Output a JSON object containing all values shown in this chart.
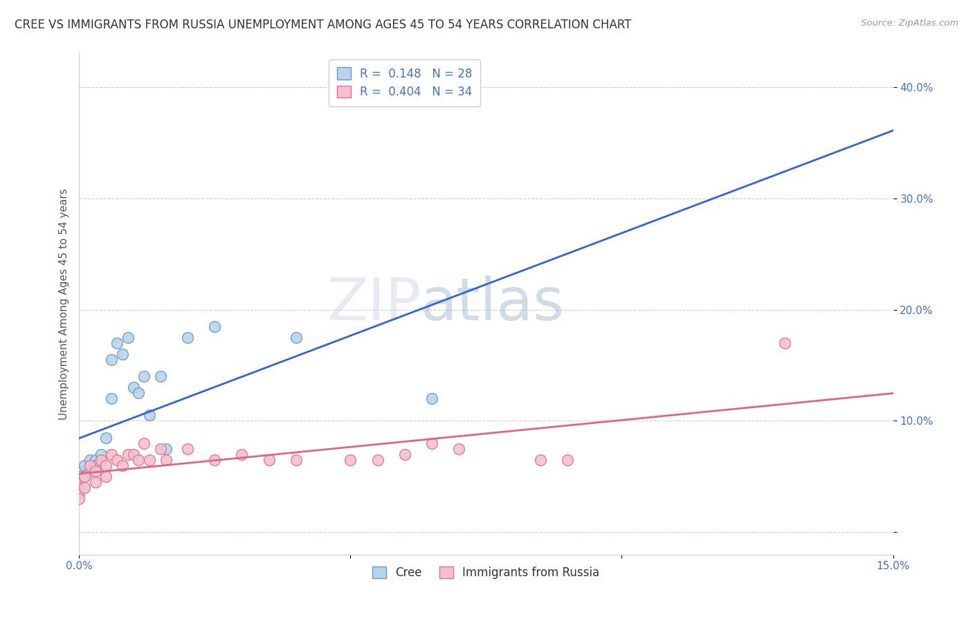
{
  "title": "CREE VS IMMIGRANTS FROM RUSSIA UNEMPLOYMENT AMONG AGES 45 TO 54 YEARS CORRELATION CHART",
  "source": "Source: ZipAtlas.com",
  "xlabel": "",
  "ylabel": "Unemployment Among Ages 45 to 54 years",
  "xlim": [
    0.0,
    0.15
  ],
  "ylim": [
    -0.02,
    0.43
  ],
  "xticks": [
    0.0,
    0.05,
    0.1,
    0.15
  ],
  "xtick_labels": [
    "0.0%",
    "",
    "",
    "15.0%"
  ],
  "yticks": [
    0.0,
    0.1,
    0.2,
    0.3,
    0.4
  ],
  "ytick_labels": [
    "",
    "10.0%",
    "20.0%",
    "30.0%",
    "40.0%"
  ],
  "cree_color": "#b8d4ea",
  "cree_edge_color": "#6699cc",
  "russia_color": "#f5c0ce",
  "russia_edge_color": "#e07090",
  "cree_line_color": "#3366cc",
  "russia_line_color": "#dd6688",
  "legend_R_cree": "R =  0.148",
  "legend_N_cree": "N = 28",
  "legend_R_russia": "R =  0.404",
  "legend_N_russia": "N = 34",
  "watermark_zip": "ZIP",
  "watermark_atlas": "atlas",
  "cree_x": [
    0.0,
    0.0,
    0.0,
    0.0,
    0.0,
    0.001,
    0.001,
    0.002,
    0.002,
    0.003,
    0.003,
    0.004,
    0.005,
    0.006,
    0.006,
    0.007,
    0.008,
    0.009,
    0.01,
    0.011,
    0.012,
    0.013,
    0.015,
    0.016,
    0.02,
    0.025,
    0.04,
    0.065
  ],
  "cree_y": [
    0.055,
    0.05,
    0.045,
    0.04,
    0.035,
    0.06,
    0.05,
    0.065,
    0.055,
    0.065,
    0.06,
    0.07,
    0.085,
    0.155,
    0.12,
    0.17,
    0.16,
    0.175,
    0.13,
    0.125,
    0.14,
    0.105,
    0.14,
    0.075,
    0.175,
    0.185,
    0.175,
    0.12
  ],
  "russia_x": [
    0.0,
    0.0,
    0.0,
    0.001,
    0.001,
    0.002,
    0.003,
    0.003,
    0.004,
    0.005,
    0.005,
    0.006,
    0.007,
    0.008,
    0.009,
    0.01,
    0.011,
    0.012,
    0.013,
    0.015,
    0.016,
    0.02,
    0.025,
    0.03,
    0.035,
    0.04,
    0.05,
    0.055,
    0.06,
    0.065,
    0.07,
    0.085,
    0.09,
    0.13
  ],
  "russia_y": [
    0.04,
    0.035,
    0.03,
    0.05,
    0.04,
    0.06,
    0.055,
    0.045,
    0.065,
    0.06,
    0.05,
    0.07,
    0.065,
    0.06,
    0.07,
    0.07,
    0.065,
    0.08,
    0.065,
    0.075,
    0.065,
    0.075,
    0.065,
    0.07,
    0.065,
    0.065,
    0.065,
    0.065,
    0.07,
    0.08,
    0.075,
    0.065,
    0.065,
    0.17
  ],
  "background_color": "#ffffff",
  "grid_color": "#cccccc",
  "title_fontsize": 12,
  "axis_fontsize": 11,
  "tick_fontsize": 11,
  "legend_fontsize": 12,
  "marker_size": 130
}
